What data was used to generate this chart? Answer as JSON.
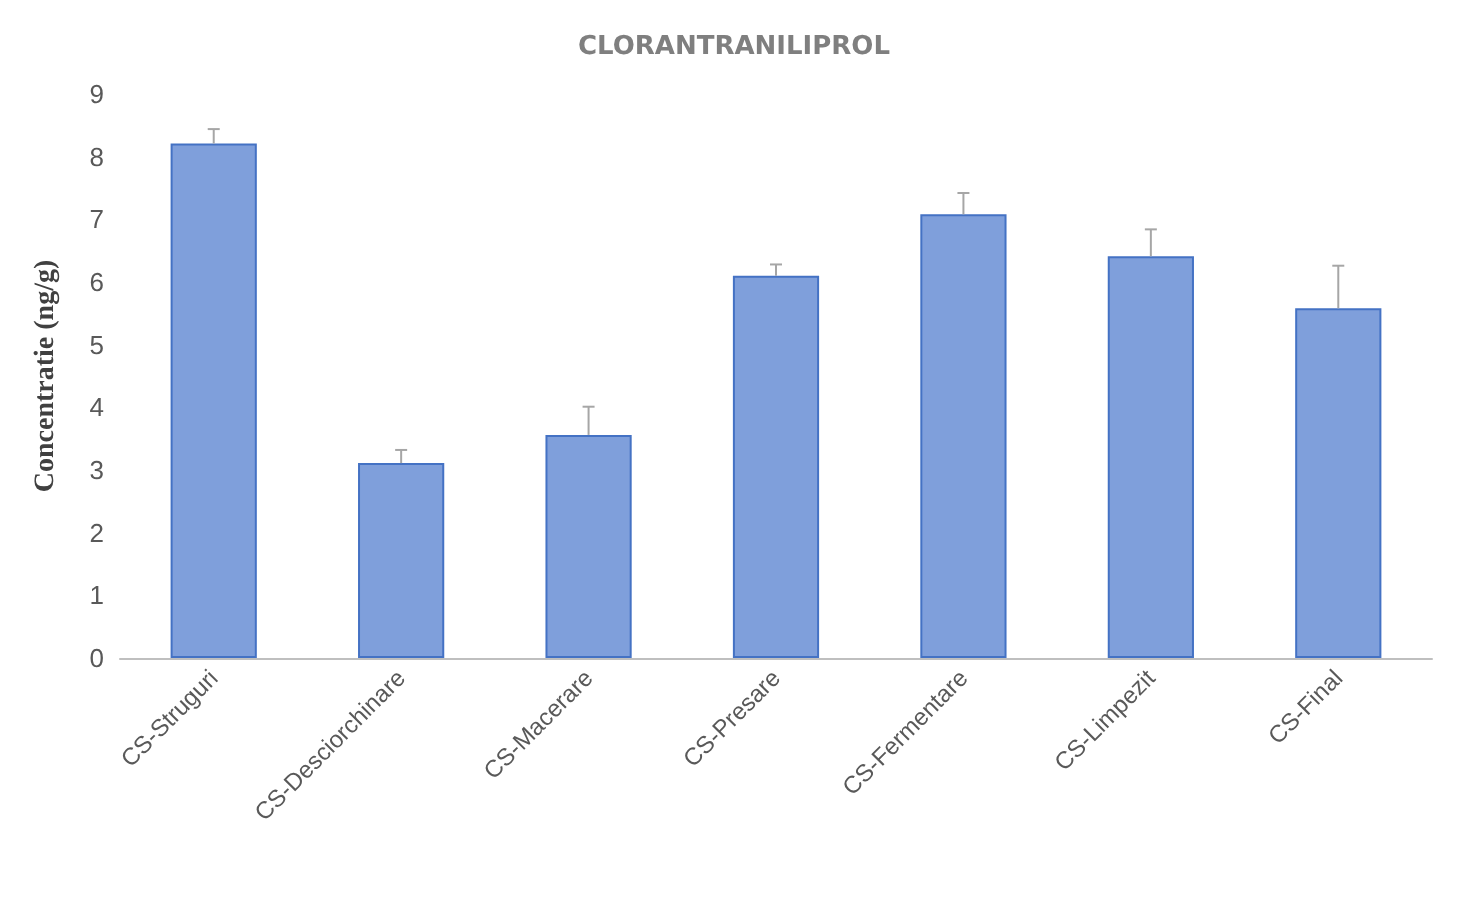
{
  "chart_data": {
    "type": "bar",
    "title": "CLORANTRANILIPROL",
    "ylabel": "Concentratie (ng/g)",
    "categories": [
      "CS-Struguri",
      "CS-Desciorchinare",
      "CS-Macerare",
      "CS-Presare",
      "CS-Fermentare",
      "CS-Limpezit",
      "CS-Final"
    ],
    "values": [
      8.21,
      3.11,
      3.56,
      6.1,
      7.08,
      6.41,
      5.58
    ],
    "errors": [
      [
        8.21,
        8.44
      ],
      [
        3.11,
        3.32
      ],
      [
        3.56,
        4.01
      ],
      [
        6.1,
        6.28
      ],
      [
        7.08,
        7.42
      ],
      [
        6.41,
        6.84
      ],
      [
        5.58,
        6.26
      ]
    ],
    "color": "#7f9fdb",
    "ylim": [
      0,
      9
    ],
    "yticks": [
      0,
      1,
      2,
      3,
      4,
      5,
      6,
      7,
      8,
      9
    ]
  }
}
